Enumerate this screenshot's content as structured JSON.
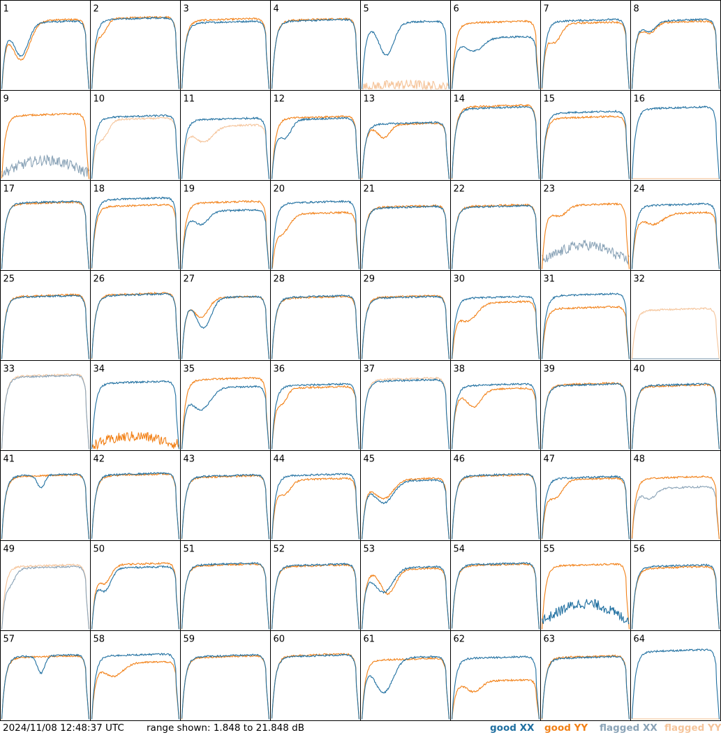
{
  "timestamp": "2024/11/08 12:48:37 UTC",
  "range_text": "range shown: 1.848 to 21.848 dB",
  "legend": [
    {
      "label": "good XX",
      "color": "#1f6fa0"
    },
    {
      "label": "good YY",
      "color": "#f28016"
    },
    {
      "label": "flagged XX",
      "color": "#8aa3b7"
    },
    {
      "label": "flagged YY",
      "color": "#f5c49a"
    }
  ],
  "chart_data": {
    "type": "line",
    "title": "",
    "xlabel": "",
    "ylabel": "",
    "ylim": [
      1.848,
      21.848
    ],
    "panels": [
      {
        "label": "1",
        "xx": {
          "status": "good",
          "level": 0.78,
          "dip": {
            "pos": 0.22,
            "depth": 0.38,
            "width": 0.12
          }
        },
        "yy": {
          "status": "good",
          "level": 0.8,
          "dip": {
            "pos": 0.22,
            "depth": 0.45,
            "width": 0.14
          }
        }
      },
      {
        "label": "2",
        "xx": {
          "status": "good",
          "level": 0.82
        },
        "yy": {
          "status": "good",
          "level": 0.83,
          "dip": {
            "pos": 0.12,
            "depth": 0.15,
            "width": 0.08
          }
        }
      },
      {
        "label": "3",
        "xx": {
          "status": "good",
          "level": 0.78
        },
        "yy": {
          "status": "good",
          "level": 0.81
        }
      },
      {
        "label": "4",
        "xx": {
          "status": "good",
          "level": 0.8
        },
        "yy": {
          "status": "good",
          "level": 0.81
        }
      },
      {
        "label": "5",
        "xx": {
          "status": "good",
          "level": 0.78,
          "dip": {
            "pos": 0.28,
            "depth": 0.38,
            "width": 0.12
          }
        },
        "yy": {
          "status": "flagged",
          "level": 0.05,
          "dead": true
        }
      },
      {
        "label": "6",
        "xx": {
          "status": "good",
          "level": 0.6,
          "dip": {
            "pos": 0.25,
            "depth": 0.15,
            "width": 0.15
          }
        },
        "yy": {
          "status": "good",
          "level": 0.78
        }
      },
      {
        "label": "7",
        "xx": {
          "status": "good",
          "level": 0.8
        },
        "yy": {
          "status": "good",
          "level": 0.77,
          "dip": {
            "pos": 0.15,
            "depth": 0.2,
            "width": 0.1
          }
        }
      },
      {
        "label": "8",
        "xx": {
          "status": "good",
          "level": 0.8,
          "dip": {
            "pos": 0.2,
            "depth": 0.12,
            "width": 0.1
          }
        },
        "yy": {
          "status": "good",
          "level": 0.78,
          "dip": {
            "pos": 0.2,
            "depth": 0.12,
            "width": 0.1
          }
        }
      },
      {
        "label": "9",
        "xx": {
          "status": "flagged",
          "level": 0.22,
          "dead": true
        },
        "yy": {
          "status": "good",
          "level": 0.75
        }
      },
      {
        "label": "10",
        "xx": {
          "status": "good",
          "level": 0.73
        },
        "yy": {
          "status": "flagged",
          "level": 0.7,
          "dip": {
            "pos": 0.12,
            "depth": 0.2,
            "width": 0.1
          }
        }
      },
      {
        "label": "11",
        "xx": {
          "status": "good",
          "level": 0.7
        },
        "yy": {
          "status": "flagged",
          "level": 0.62,
          "dip": {
            "pos": 0.25,
            "depth": 0.18,
            "width": 0.15
          }
        }
      },
      {
        "label": "12",
        "xx": {
          "status": "good",
          "level": 0.7,
          "dip": {
            "pos": 0.15,
            "depth": 0.2,
            "width": 0.1
          }
        },
        "yy": {
          "status": "good",
          "level": 0.72
        }
      },
      {
        "label": "13",
        "xx": {
          "status": "good",
          "level": 0.65
        },
        "yy": {
          "status": "good",
          "level": 0.64,
          "dip": {
            "pos": 0.25,
            "depth": 0.15,
            "width": 0.1
          }
        }
      },
      {
        "label": "14",
        "xx": {
          "status": "good",
          "level": 0.83
        },
        "yy": {
          "status": "good",
          "level": 0.85
        }
      },
      {
        "label": "15",
        "xx": {
          "status": "good",
          "level": 0.78
        },
        "yy": {
          "status": "good",
          "level": 0.72
        }
      },
      {
        "label": "16",
        "xx": {
          "status": "good",
          "level": 0.83
        },
        "yy": {
          "status": "flagged",
          "level": 0.0,
          "dead": true
        }
      },
      {
        "label": "17",
        "xx": {
          "status": "good",
          "level": 0.78
        },
        "yy": {
          "status": "good",
          "level": 0.77
        }
      },
      {
        "label": "18",
        "xx": {
          "status": "good",
          "level": 0.82
        },
        "yy": {
          "status": "good",
          "level": 0.74
        }
      },
      {
        "label": "19",
        "xx": {
          "status": "good",
          "level": 0.68,
          "dip": {
            "pos": 0.22,
            "depth": 0.15,
            "width": 0.12
          }
        },
        "yy": {
          "status": "good",
          "level": 0.78
        }
      },
      {
        "label": "20",
        "xx": {
          "status": "good",
          "level": 0.78
        },
        "yy": {
          "status": "good",
          "level": 0.65,
          "dip": {
            "pos": 0.12,
            "depth": 0.2,
            "width": 0.12
          }
        }
      },
      {
        "label": "21",
        "xx": {
          "status": "good",
          "level": 0.72
        },
        "yy": {
          "status": "good",
          "level": 0.73
        }
      },
      {
        "label": "22",
        "xx": {
          "status": "good",
          "level": 0.73
        },
        "yy": {
          "status": "good",
          "level": 0.74
        }
      },
      {
        "label": "23",
        "xx": {
          "status": "flagged",
          "level": 0.28,
          "dead": true
        },
        "yy": {
          "status": "good",
          "level": 0.75,
          "dip": {
            "pos": 0.2,
            "depth": 0.12,
            "width": 0.12
          }
        }
      },
      {
        "label": "24",
        "xx": {
          "status": "good",
          "level": 0.75
        },
        "yy": {
          "status": "good",
          "level": 0.65,
          "dip": {
            "pos": 0.25,
            "depth": 0.12,
            "width": 0.15
          }
        }
      },
      {
        "label": "25",
        "xx": {
          "status": "good",
          "level": 0.73
        },
        "yy": {
          "status": "good",
          "level": 0.74
        }
      },
      {
        "label": "26",
        "xx": {
          "status": "good",
          "level": 0.75
        },
        "yy": {
          "status": "good",
          "level": 0.76
        }
      },
      {
        "label": "27",
        "xx": {
          "status": "good",
          "level": 0.72,
          "dip": {
            "pos": 0.25,
            "depth": 0.35,
            "width": 0.12
          }
        },
        "yy": {
          "status": "good",
          "level": 0.72,
          "dip": {
            "pos": 0.22,
            "depth": 0.22,
            "width": 0.12
          }
        }
      },
      {
        "label": "28",
        "xx": {
          "status": "good",
          "level": 0.73
        },
        "yy": {
          "status": "good",
          "level": 0.72
        }
      },
      {
        "label": "29",
        "xx": {
          "status": "good",
          "level": 0.72
        },
        "yy": {
          "status": "good",
          "level": 0.73
        }
      },
      {
        "label": "30",
        "xx": {
          "status": "good",
          "level": 0.72
        },
        "yy": {
          "status": "good",
          "level": 0.66,
          "dip": {
            "pos": 0.18,
            "depth": 0.2,
            "width": 0.15
          }
        }
      },
      {
        "label": "31",
        "xx": {
          "status": "good",
          "level": 0.75
        },
        "yy": {
          "status": "good",
          "level": 0.6
        }
      },
      {
        "label": "32",
        "xx": {
          "status": "flagged",
          "level": 0.0,
          "dead": true
        },
        "yy": {
          "status": "flagged",
          "level": 0.58
        }
      },
      {
        "label": "33",
        "xx": {
          "status": "flagged",
          "level": 0.85
        },
        "yy": {
          "status": "flagged",
          "level": 0.86
        }
      },
      {
        "label": "34",
        "xx": {
          "status": "good",
          "level": 0.78
        },
        "yy": {
          "status": "good",
          "level": 0.15,
          "dead": true
        }
      },
      {
        "label": "35",
        "xx": {
          "status": "good",
          "level": 0.72,
          "dip": {
            "pos": 0.22,
            "depth": 0.25,
            "width": 0.15
          }
        },
        "yy": {
          "status": "good",
          "level": 0.82
        }
      },
      {
        "label": "36",
        "xx": {
          "status": "good",
          "level": 0.75
        },
        "yy": {
          "status": "good",
          "level": 0.72,
          "dip": {
            "pos": 0.12,
            "depth": 0.15,
            "width": 0.08
          }
        }
      },
      {
        "label": "37",
        "xx": {
          "status": "good",
          "level": 0.8
        },
        "yy": {
          "status": "flagged",
          "level": 0.82
        }
      },
      {
        "label": "38",
        "xx": {
          "status": "good",
          "level": 0.75
        },
        "yy": {
          "status": "good",
          "level": 0.7,
          "dip": {
            "pos": 0.25,
            "depth": 0.2,
            "width": 0.12
          }
        }
      },
      {
        "label": "39",
        "xx": {
          "status": "good",
          "level": 0.75
        },
        "yy": {
          "status": "good",
          "level": 0.76
        }
      },
      {
        "label": "40",
        "xx": {
          "status": "good",
          "level": 0.75
        },
        "yy": {
          "status": "good",
          "level": 0.74
        }
      },
      {
        "label": "41",
        "xx": {
          "status": "good",
          "level": 0.75,
          "dip": {
            "pos": 0.45,
            "depth": 0.15,
            "width": 0.06
          }
        },
        "yy": {
          "status": "good",
          "level": 0.74
        }
      },
      {
        "label": "42",
        "xx": {
          "status": "good",
          "level": 0.76
        },
        "yy": {
          "status": "good",
          "level": 0.75
        }
      },
      {
        "label": "43",
        "xx": {
          "status": "good",
          "level": 0.74
        },
        "yy": {
          "status": "good",
          "level": 0.73
        }
      },
      {
        "label": "44",
        "xx": {
          "status": "good",
          "level": 0.75
        },
        "yy": {
          "status": "good",
          "level": 0.7,
          "dip": {
            "pos": 0.15,
            "depth": 0.15,
            "width": 0.1
          }
        }
      },
      {
        "label": "45",
        "xx": {
          "status": "good",
          "level": 0.68,
          "dip": {
            "pos": 0.25,
            "depth": 0.25,
            "width": 0.15
          }
        },
        "yy": {
          "status": "good",
          "level": 0.7,
          "dip": {
            "pos": 0.25,
            "depth": 0.22,
            "width": 0.15
          }
        }
      },
      {
        "label": "46",
        "xx": {
          "status": "good",
          "level": 0.75
        },
        "yy": {
          "status": "good",
          "level": 0.74
        }
      },
      {
        "label": "47",
        "xx": {
          "status": "good",
          "level": 0.72
        },
        "yy": {
          "status": "good",
          "level": 0.7,
          "dip": {
            "pos": 0.15,
            "depth": 0.2,
            "width": 0.12
          }
        }
      },
      {
        "label": "48",
        "xx": {
          "status": "flagged",
          "level": 0.6,
          "dip": {
            "pos": 0.2,
            "depth": 0.12,
            "width": 0.1
          }
        },
        "yy": {
          "status": "good",
          "level": 0.72
        }
      },
      {
        "label": "49",
        "xx": {
          "status": "flagged",
          "level": 0.72,
          "dip": {
            "pos": 0.1,
            "depth": 0.15,
            "width": 0.08
          }
        },
        "yy": {
          "status": "flagged",
          "level": 0.74
        }
      },
      {
        "label": "50",
        "xx": {
          "status": "good",
          "level": 0.72,
          "dip": {
            "pos": 0.15,
            "depth": 0.25,
            "width": 0.1
          }
        },
        "yy": {
          "status": "good",
          "level": 0.76,
          "dip": {
            "pos": 0.15,
            "depth": 0.2,
            "width": 0.1
          }
        }
      },
      {
        "label": "51",
        "xx": {
          "status": "good",
          "level": 0.76
        },
        "yy": {
          "status": "good",
          "level": 0.75
        }
      },
      {
        "label": "52",
        "xx": {
          "status": "good",
          "level": 0.75
        },
        "yy": {
          "status": "good",
          "level": 0.74
        }
      },
      {
        "label": "53",
        "xx": {
          "status": "good",
          "level": 0.72,
          "dip": {
            "pos": 0.25,
            "depth": 0.28,
            "width": 0.15
          }
        },
        "yy": {
          "status": "good",
          "level": 0.7,
          "dip": {
            "pos": 0.3,
            "depth": 0.28,
            "width": 0.12
          }
        }
      },
      {
        "label": "54",
        "xx": {
          "status": "good",
          "level": 0.76
        },
        "yy": {
          "status": "good",
          "level": 0.75
        }
      },
      {
        "label": "55",
        "xx": {
          "status": "good",
          "level": 0.3,
          "dead": true
        },
        "yy": {
          "status": "good",
          "level": 0.75
        }
      },
      {
        "label": "56",
        "xx": {
          "status": "good",
          "level": 0.74
        },
        "yy": {
          "status": "good",
          "level": 0.72
        }
      },
      {
        "label": "57",
        "xx": {
          "status": "good",
          "level": 0.74,
          "dip": {
            "pos": 0.45,
            "depth": 0.2,
            "width": 0.06
          }
        },
        "yy": {
          "status": "good",
          "level": 0.73
        }
      },
      {
        "label": "58",
        "xx": {
          "status": "good",
          "level": 0.75
        },
        "yy": {
          "status": "good",
          "level": 0.66,
          "dip": {
            "pos": 0.25,
            "depth": 0.15,
            "width": 0.15
          }
        }
      },
      {
        "label": "59",
        "xx": {
          "status": "good",
          "level": 0.74
        },
        "yy": {
          "status": "good",
          "level": 0.73
        }
      },
      {
        "label": "60",
        "xx": {
          "status": "good",
          "level": 0.74
        },
        "yy": {
          "status": "good",
          "level": 0.75
        }
      },
      {
        "label": "61",
        "xx": {
          "status": "good",
          "level": 0.72,
          "dip": {
            "pos": 0.25,
            "depth": 0.4,
            "width": 0.15
          }
        },
        "yy": {
          "status": "good",
          "level": 0.7
        }
      },
      {
        "label": "62",
        "xx": {
          "status": "good",
          "level": 0.72
        },
        "yy": {
          "status": "good",
          "level": 0.45,
          "dip": {
            "pos": 0.25,
            "depth": 0.12,
            "width": 0.12
          }
        }
      },
      {
        "label": "63",
        "xx": {
          "status": "good",
          "level": 0.72
        },
        "yy": {
          "status": "good",
          "level": 0.73
        }
      },
      {
        "label": "64",
        "xx": {
          "status": "good",
          "level": 0.8
        },
        "yy": {
          "status": "flagged",
          "level": 0.0,
          "dead": true
        }
      }
    ]
  }
}
